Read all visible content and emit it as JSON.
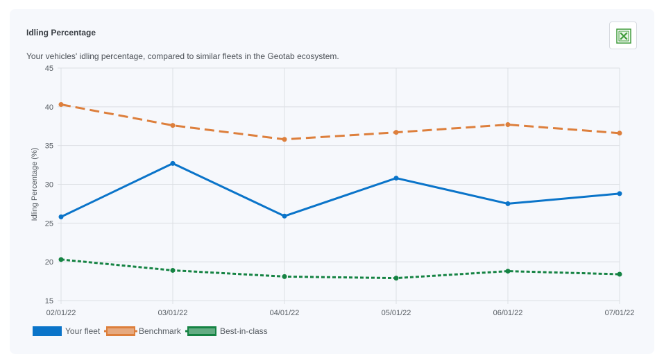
{
  "header": {
    "title": "Idling Percentage",
    "subtitle": "Your vehicles' idling percentage, compared to similar fleets in the Geotab ecosystem."
  },
  "export": {
    "icon": "excel-icon"
  },
  "chart_data": {
    "type": "line",
    "title": "",
    "xlabel": "",
    "ylabel": "Idling Percentage (%)",
    "categories": [
      "02/01/22",
      "03/01/22",
      "04/01/22",
      "05/01/22",
      "06/01/22",
      "07/01/22"
    ],
    "ylim": [
      15,
      45
    ],
    "yticks": [
      15,
      20,
      25,
      30,
      35,
      40,
      45
    ],
    "grid": true,
    "legend_position": "bottom-left",
    "series": [
      {
        "name": "Your fleet",
        "color": "#0a74c9",
        "style": "solid",
        "values": [
          25.8,
          32.7,
          25.9,
          30.8,
          27.5,
          28.8
        ]
      },
      {
        "name": "Benchmark",
        "color": "#dd7f3c",
        "style": "dashed",
        "values": [
          40.3,
          37.6,
          35.8,
          36.7,
          37.7,
          36.6
        ]
      },
      {
        "name": "Best-in-class",
        "color": "#158343",
        "style": "dotted",
        "values": [
          20.3,
          18.9,
          18.1,
          17.9,
          18.8,
          18.4
        ]
      }
    ]
  }
}
